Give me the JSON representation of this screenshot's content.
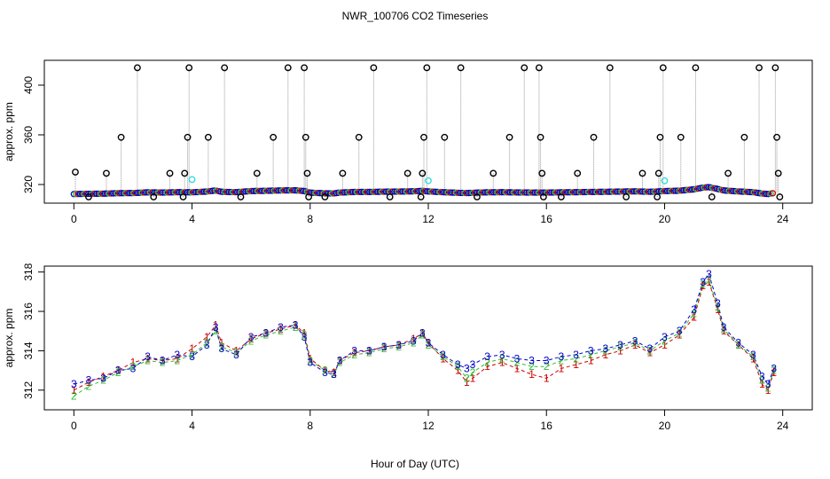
{
  "figure": {
    "title": "NWR_100706  CO2 Timeseries",
    "xlabel": "Hour of Day (UTC)"
  },
  "colors": {
    "s1": "#cc0000",
    "s2": "#33bb33",
    "s3": "#0000cc",
    "ring": "#000000",
    "cyan": "#33dddd",
    "gray": "#999999"
  },
  "chart_data": [
    {
      "type": "scatter",
      "ylabel": "approx. ppm",
      "xlim": [
        -1,
        25
      ],
      "ylim": [
        305,
        420
      ],
      "x_ticks": [
        0,
        4,
        8,
        12,
        16,
        20,
        24
      ],
      "x_tick_labels": [
        "0",
        "4",
        "8",
        "12",
        "16",
        "20",
        "24"
      ],
      "y_ticks": [
        320,
        360,
        400
      ],
      "y_tick_labels": [
        "320",
        "360",
        "400"
      ],
      "ring_points": [
        {
          "x": 0.05,
          "y": 330
        },
        {
          "x": 0.5,
          "y": 310
        },
        {
          "x": 1.1,
          "y": 329
        },
        {
          "x": 1.6,
          "y": 358
        },
        {
          "x": 2.15,
          "y": 414
        },
        {
          "x": 2.7,
          "y": 310
        },
        {
          "x": 3.25,
          "y": 329
        },
        {
          "x": 3.7,
          "y": 310
        },
        {
          "x": 3.85,
          "y": 358
        },
        {
          "x": 3.9,
          "y": 414
        },
        {
          "x": 3.75,
          "y": 329
        },
        {
          "x": 4.55,
          "y": 358
        },
        {
          "x": 5.1,
          "y": 414
        },
        {
          "x": 5.65,
          "y": 310
        },
        {
          "x": 6.2,
          "y": 329
        },
        {
          "x": 6.75,
          "y": 358
        },
        {
          "x": 7.25,
          "y": 414
        },
        {
          "x": 7.8,
          "y": 414
        },
        {
          "x": 7.85,
          "y": 358
        },
        {
          "x": 7.9,
          "y": 329
        },
        {
          "x": 7.95,
          "y": 310
        },
        {
          "x": 8.5,
          "y": 310
        },
        {
          "x": 9.1,
          "y": 329
        },
        {
          "x": 9.65,
          "y": 358
        },
        {
          "x": 10.15,
          "y": 414
        },
        {
          "x": 10.7,
          "y": 310
        },
        {
          "x": 11.3,
          "y": 329
        },
        {
          "x": 11.75,
          "y": 310
        },
        {
          "x": 11.85,
          "y": 358
        },
        {
          "x": 11.95,
          "y": 414
        },
        {
          "x": 11.8,
          "y": 329
        },
        {
          "x": 12.55,
          "y": 358
        },
        {
          "x": 13.1,
          "y": 414
        },
        {
          "x": 13.65,
          "y": 310
        },
        {
          "x": 14.2,
          "y": 329
        },
        {
          "x": 14.75,
          "y": 358
        },
        {
          "x": 15.25,
          "y": 414
        },
        {
          "x": 15.75,
          "y": 414
        },
        {
          "x": 15.8,
          "y": 358
        },
        {
          "x": 15.85,
          "y": 329
        },
        {
          "x": 15.9,
          "y": 310
        },
        {
          "x": 16.5,
          "y": 310
        },
        {
          "x": 17.05,
          "y": 329
        },
        {
          "x": 17.6,
          "y": 358
        },
        {
          "x": 18.15,
          "y": 414
        },
        {
          "x": 18.7,
          "y": 310
        },
        {
          "x": 19.25,
          "y": 329
        },
        {
          "x": 19.75,
          "y": 310
        },
        {
          "x": 19.8,
          "y": 329
        },
        {
          "x": 19.85,
          "y": 358
        },
        {
          "x": 19.95,
          "y": 414
        },
        {
          "x": 20.55,
          "y": 358
        },
        {
          "x": 21.05,
          "y": 414
        },
        {
          "x": 21.6,
          "y": 310
        },
        {
          "x": 22.15,
          "y": 329
        },
        {
          "x": 22.7,
          "y": 358
        },
        {
          "x": 23.2,
          "y": 414
        },
        {
          "x": 23.75,
          "y": 414
        },
        {
          "x": 23.8,
          "y": 358
        },
        {
          "x": 23.85,
          "y": 329
        },
        {
          "x": 23.9,
          "y": 310
        }
      ],
      "cyan_points": [
        {
          "x": 4.0,
          "y": 324
        },
        {
          "x": 12.0,
          "y": 323
        },
        {
          "x": 20.0,
          "y": 323
        }
      ]
    },
    {
      "type": "line",
      "ylabel": "approx. ppm",
      "xlim": [
        -1,
        25
      ],
      "ylim": [
        311,
        318.3
      ],
      "x_ticks": [
        0,
        4,
        8,
        12,
        16,
        20,
        24
      ],
      "x_tick_labels": [
        "0",
        "4",
        "8",
        "12",
        "16",
        "20",
        "24"
      ],
      "y_ticks": [
        312,
        314,
        316,
        318
      ],
      "y_tick_labels": [
        "312",
        "314",
        "316",
        "318"
      ],
      "x": [
        0.0,
        0.5,
        1.0,
        1.5,
        2.0,
        2.5,
        3.0,
        3.5,
        4.0,
        4.5,
        4.8,
        5.0,
        5.5,
        6.0,
        6.5,
        7.0,
        7.5,
        7.8,
        8.0,
        8.5,
        8.8,
        9.0,
        9.5,
        10.0,
        10.5,
        11.0,
        11.5,
        11.8,
        12.0,
        12.5,
        13.0,
        13.3,
        13.5,
        14.0,
        14.5,
        15.0,
        15.5,
        16.0,
        16.5,
        17.0,
        17.5,
        18.0,
        18.5,
        19.0,
        19.5,
        20.0,
        20.5,
        21.0,
        21.3,
        21.5,
        21.8,
        22.0,
        22.5,
        23.0,
        23.3,
        23.5,
        23.7
      ],
      "series": [
        {
          "name": "1",
          "marker": "1",
          "values": [
            312.0,
            312.4,
            312.7,
            313.0,
            313.4,
            313.6,
            313.5,
            313.6,
            314.1,
            314.7,
            315.3,
            314.4,
            314.0,
            314.6,
            314.9,
            315.1,
            315.3,
            314.9,
            313.6,
            313.0,
            312.9,
            313.5,
            313.9,
            314.0,
            314.2,
            314.3,
            314.6,
            314.9,
            314.4,
            313.6,
            313.0,
            312.4,
            312.6,
            313.2,
            313.4,
            313.1,
            312.8,
            312.6,
            313.1,
            313.3,
            313.5,
            313.8,
            314.0,
            314.3,
            313.9,
            314.3,
            314.8,
            315.7,
            317.3,
            317.5,
            316.1,
            315.0,
            314.3,
            313.6,
            312.3,
            312.0,
            312.9
          ]
        },
        {
          "name": "2",
          "marker": "2",
          "values": [
            311.7,
            312.2,
            312.5,
            312.9,
            313.2,
            313.5,
            313.4,
            313.5,
            313.8,
            314.4,
            315.0,
            314.2,
            313.9,
            314.5,
            314.8,
            315.0,
            315.2,
            314.8,
            313.5,
            313.0,
            312.8,
            313.4,
            313.8,
            313.9,
            314.1,
            314.2,
            314.4,
            314.8,
            314.3,
            313.7,
            313.2,
            312.6,
            312.9,
            313.4,
            313.6,
            313.4,
            313.2,
            313.2,
            313.5,
            313.6,
            313.8,
            314.0,
            314.2,
            314.4,
            314.0,
            314.5,
            314.9,
            315.9,
            317.4,
            317.6,
            316.2,
            315.1,
            314.3,
            313.7,
            312.5,
            312.1,
            313.0
          ]
        },
        {
          "name": "3",
          "marker": "3",
          "values": [
            312.3,
            312.5,
            312.6,
            313.0,
            313.1,
            313.7,
            313.5,
            313.8,
            313.7,
            314.3,
            315.2,
            314.1,
            313.8,
            314.7,
            314.9,
            315.2,
            315.3,
            314.7,
            313.4,
            312.9,
            312.8,
            313.5,
            314.0,
            314.0,
            314.2,
            314.3,
            314.5,
            314.9,
            314.4,
            313.8,
            313.3,
            313.1,
            313.3,
            313.7,
            313.8,
            313.6,
            313.5,
            313.5,
            313.7,
            313.8,
            314.0,
            314.1,
            314.3,
            314.5,
            314.1,
            314.7,
            315.0,
            316.1,
            317.5,
            317.9,
            316.4,
            315.2,
            314.4,
            313.8,
            312.7,
            312.3,
            313.1
          ]
        }
      ]
    }
  ]
}
